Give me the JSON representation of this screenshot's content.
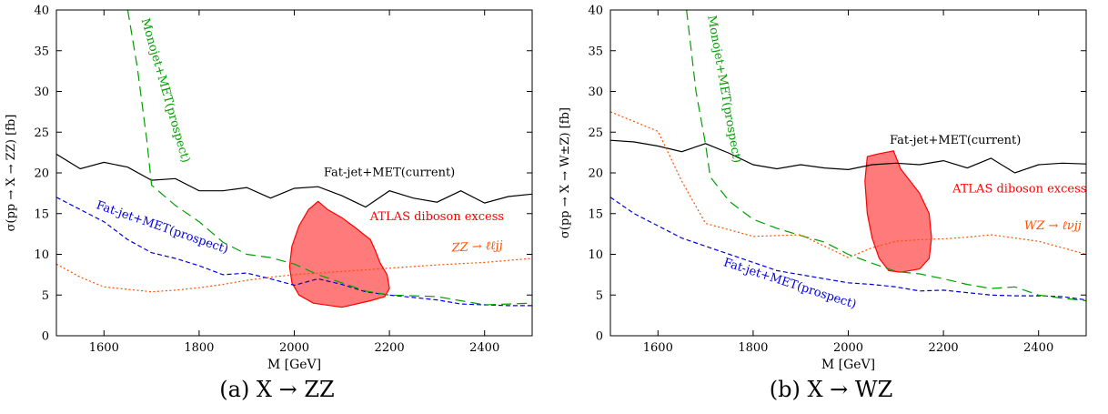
{
  "chart_data": [
    {
      "type": "line",
      "caption": "(a) X → ZZ",
      "xlabel": "M [GeV]",
      "ylabel": "σ(pp → X → ZZ) [fb]",
      "xlim": [
        1500,
        2500
      ],
      "ylim": [
        0,
        40
      ],
      "x_ticks": [
        1600,
        1800,
        2000,
        2200,
        2400
      ],
      "y_ticks": [
        0,
        5,
        10,
        15,
        20,
        25,
        30,
        35,
        40
      ],
      "grid": false,
      "series": [
        {
          "name": "Fat-jet+MET(current)",
          "color": "#000000",
          "style": "solid",
          "x": [
            1500,
            1550,
            1600,
            1650,
            1700,
            1750,
            1800,
            1850,
            1900,
            1950,
            2000,
            2050,
            2100,
            2150,
            2200,
            2250,
            2300,
            2350,
            2400,
            2450,
            2500
          ],
          "y": [
            22.3,
            20.5,
            21.3,
            20.7,
            19.1,
            19.3,
            17.8,
            17.8,
            18.2,
            16.9,
            18.1,
            18.3,
            17.2,
            15.8,
            17.8,
            16.9,
            16.4,
            17.8,
            16.3,
            17.1,
            17.4
          ]
        },
        {
          "name": "Fat-jet+MET(prospect)",
          "color": "#0000e0",
          "style": "dashed",
          "x": [
            1500,
            1550,
            1600,
            1650,
            1700,
            1750,
            1800,
            1850,
            1900,
            1950,
            2000,
            2050,
            2100,
            2150,
            2200,
            2250,
            2300,
            2350,
            2400,
            2450,
            2500
          ],
          "y": [
            17.0,
            15.5,
            14.0,
            11.8,
            10.2,
            9.5,
            8.6,
            7.5,
            7.7,
            7.0,
            6.2,
            7.0,
            6.3,
            5.4,
            5.0,
            4.7,
            4.4,
            3.9,
            3.8,
            3.7,
            3.7
          ]
        },
        {
          "name": "Monojet+MET(prospect)",
          "color": "#00a000",
          "style": "long-dashed",
          "x": [
            1650,
            1670,
            1690,
            1700,
            1750,
            1800,
            1850,
            1900,
            1950,
            2000,
            2050,
            2100,
            2150,
            2200,
            2250,
            2300,
            2350,
            2400,
            2450,
            2500
          ],
          "y": [
            40.0,
            33.0,
            24.0,
            18.5,
            16.0,
            14.0,
            11.5,
            10.0,
            9.6,
            8.8,
            7.5,
            6.5,
            5.5,
            5.0,
            4.9,
            4.8,
            4.3,
            3.8,
            3.9,
            4.0
          ]
        },
        {
          "name": "ZZ → ℓℓjj",
          "color": "#ff4f00",
          "style": "dotted",
          "x": [
            1500,
            1550,
            1600,
            1650,
            1700,
            1750,
            1800,
            1850,
            1900,
            1950,
            2000,
            2100,
            2200,
            2300,
            2400,
            2500
          ],
          "y": [
            8.8,
            7.2,
            6.0,
            5.7,
            5.4,
            5.6,
            5.9,
            6.3,
            6.8,
            7.2,
            7.5,
            7.9,
            8.3,
            8.7,
            9.0,
            9.5
          ]
        }
      ],
      "region": {
        "name": "ATLAS diboson excess",
        "color": "#ff0000",
        "x": [
          2050,
          2070,
          2100,
          2130,
          2160,
          2170,
          2180,
          2195,
          2200,
          2190,
          2160,
          2100,
          2040,
          2010,
          1995,
          1990,
          1995,
          2010,
          2030
        ],
        "y": [
          16.5,
          15.5,
          14.5,
          13.2,
          11.8,
          10.5,
          9.0,
          7.5,
          5.8,
          4.8,
          4.3,
          3.5,
          4.0,
          5.0,
          6.5,
          8.5,
          11.0,
          13.5,
          15.5
        ]
      },
      "labels": {
        "fat_current": "Fat-jet+MET(current)",
        "fat_prospect": "Fat-jet+MET(prospect)",
        "monojet": "Monojet+MET(prospect)",
        "channel": "ZZ → ℓℓjj",
        "excess": "ATLAS diboson excess"
      }
    },
    {
      "type": "line",
      "caption": "(b) X → WZ",
      "xlabel": "M [GeV]",
      "ylabel": "σ(pp → X → W±Z) [fb]",
      "xlim": [
        1500,
        2500
      ],
      "ylim": [
        0,
        40
      ],
      "x_ticks": [
        1600,
        1800,
        2000,
        2200,
        2400
      ],
      "y_ticks": [
        0,
        5,
        10,
        15,
        20,
        25,
        30,
        35,
        40
      ],
      "grid": false,
      "series": [
        {
          "name": "Fat-jet+MET(current)",
          "color": "#000000",
          "style": "solid",
          "x": [
            1500,
            1550,
            1600,
            1650,
            1700,
            1750,
            1800,
            1850,
            1900,
            1950,
            2000,
            2050,
            2100,
            2150,
            2200,
            2250,
            2300,
            2350,
            2400,
            2450,
            2500
          ],
          "y": [
            24.0,
            23.8,
            23.3,
            22.6,
            23.6,
            22.4,
            21.0,
            20.5,
            21.0,
            20.6,
            20.4,
            21.0,
            21.2,
            21.0,
            21.5,
            20.6,
            21.8,
            20.0,
            21.0,
            21.2,
            21.1
          ]
        },
        {
          "name": "Fat-jet+MET(prospect)",
          "color": "#0000e0",
          "style": "dashed",
          "x": [
            1500,
            1550,
            1600,
            1650,
            1700,
            1750,
            1800,
            1850,
            1900,
            1950,
            2000,
            2050,
            2100,
            2150,
            2200,
            2250,
            2300,
            2350,
            2400,
            2450,
            2500
          ],
          "y": [
            17.0,
            15.0,
            13.5,
            12.0,
            11.0,
            10.0,
            9.0,
            8.0,
            7.5,
            7.0,
            6.5,
            6.3,
            6.0,
            5.5,
            5.6,
            5.3,
            5.0,
            4.9,
            4.9,
            4.8,
            4.4
          ]
        },
        {
          "name": "Monojet+MET(prospect)",
          "color": "#00a000",
          "style": "long-dashed",
          "x": [
            1660,
            1680,
            1700,
            1710,
            1750,
            1800,
            1850,
            1900,
            1950,
            2000,
            2050,
            2100,
            2150,
            2200,
            2250,
            2300,
            2350,
            2400,
            2450,
            2500
          ],
          "y": [
            40.0,
            30.0,
            23.5,
            19.5,
            16.5,
            14.3,
            13.2,
            12.3,
            11.5,
            10.0,
            8.9,
            7.9,
            7.6,
            7.0,
            6.3,
            5.8,
            6.0,
            5.0,
            4.6,
            4.3
          ]
        },
        {
          "name": "WZ → ℓνjj",
          "color": "#ff4f00",
          "style": "dotted",
          "x": [
            1500,
            1550,
            1600,
            1650,
            1700,
            1750,
            1800,
            1850,
            1900,
            1950,
            2000,
            2050,
            2100,
            2150,
            2200,
            2250,
            2300,
            2350,
            2400,
            2450,
            2500
          ],
          "y": [
            27.5,
            26.3,
            25.1,
            19.0,
            13.8,
            13.0,
            12.2,
            12.3,
            12.4,
            11.0,
            9.6,
            10.8,
            11.6,
            11.8,
            11.9,
            12.1,
            12.4,
            12.0,
            11.6,
            10.8,
            10.0
          ]
        }
      ],
      "region": {
        "name": "ATLAS diboson excess",
        "color": "#ff0000",
        "x": [
          2040,
          2060,
          2095,
          2110,
          2130,
          2150,
          2170,
          2175,
          2170,
          2150,
          2110,
          2085,
          2065,
          2050,
          2040,
          2035
        ],
        "y": [
          22.0,
          22.3,
          22.7,
          20.5,
          19.0,
          17.5,
          15.0,
          12.0,
          9.5,
          8.2,
          7.8,
          8.0,
          9.5,
          12.0,
          15.0,
          19.0
        ]
      },
      "labels": {
        "fat_current": "Fat-jet+MET(current)",
        "fat_prospect": "Fat-jet+MET(prospect)",
        "monojet": "Monojet+MET(prospect)",
        "channel": "WZ → ℓνjj",
        "excess": "ATLAS diboson excess"
      }
    }
  ]
}
